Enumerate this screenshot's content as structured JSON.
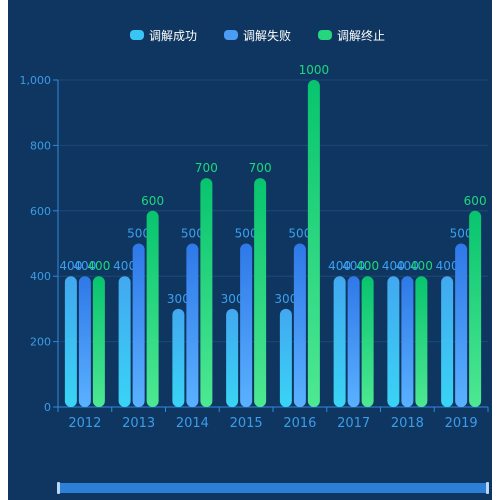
{
  "chart_data": {
    "type": "bar",
    "categories": [
      "2012",
      "2013",
      "2014",
      "2015",
      "2016",
      "2017",
      "2018",
      "2019"
    ],
    "series": [
      {
        "name": "调解成功",
        "values": [
          400,
          400,
          300,
          300,
          300,
          400,
          400,
          400
        ],
        "colors": [
          "#42a8f0",
          "#39d4f5"
        ]
      },
      {
        "name": "调解失败",
        "values": [
          400,
          500,
          500,
          500,
          500,
          400,
          400,
          500
        ],
        "colors": [
          "#2f78e8",
          "#5ab1ff"
        ]
      },
      {
        "name": "调解终止",
        "values": [
          400,
          600,
          700,
          700,
          1000,
          400,
          400,
          600
        ],
        "colors": [
          "#08c46e",
          "#4ee892"
        ]
      }
    ],
    "yticks": [
      "0",
      "200",
      "400",
      "600",
      "800",
      "1,000"
    ],
    "ylim": [
      0,
      1000
    ],
    "grid": true,
    "legend_position": "top-center",
    "label_colors": [
      "#3aa0f0",
      "#3aa0f0",
      "#1ad87e"
    ]
  }
}
